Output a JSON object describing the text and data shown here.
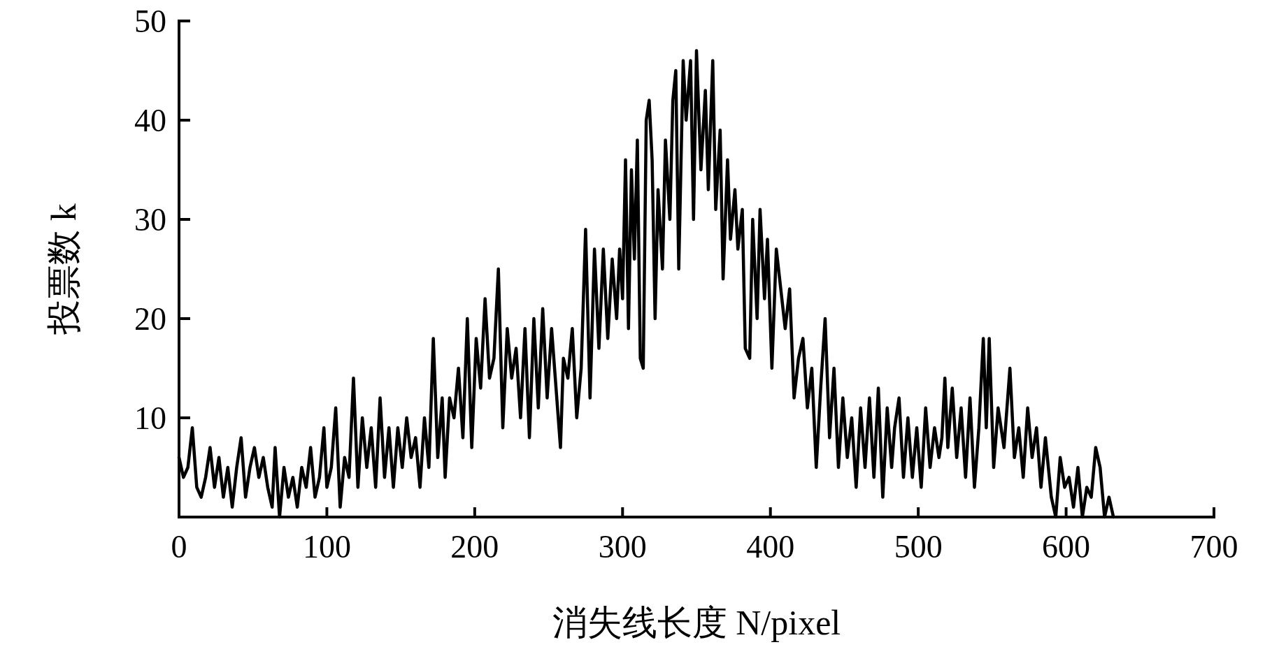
{
  "chart_data": {
    "type": "line",
    "xlabel": "消失线长度 N/pixel",
    "ylabel": "投票数 k",
    "xlim": [
      0,
      700
    ],
    "ylim": [
      0,
      50
    ],
    "xticks": [
      0,
      100,
      200,
      300,
      400,
      500,
      600,
      700
    ],
    "yticks": [
      10,
      20,
      30,
      40,
      50
    ],
    "grid": false,
    "marker": "none",
    "line_style": "solid",
    "series": [
      {
        "color": "#000000",
        "x": [
          0,
          3,
          6,
          9,
          12,
          15,
          18,
          21,
          24,
          27,
          30,
          33,
          36,
          39,
          42,
          45,
          48,
          51,
          54,
          57,
          60,
          63,
          65,
          68,
          71,
          74,
          77,
          80,
          83,
          86,
          89,
          92,
          95,
          98,
          100,
          103,
          106,
          109,
          112,
          115,
          118,
          121,
          124,
          127,
          130,
          133,
          136,
          139,
          142,
          145,
          148,
          151,
          154,
          157,
          160,
          163,
          166,
          169,
          172,
          175,
          178,
          180,
          183,
          186,
          189,
          192,
          195,
          198,
          201,
          204,
          207,
          210,
          213,
          216,
          219,
          222,
          225,
          228,
          231,
          234,
          237,
          240,
          243,
          246,
          249,
          252,
          255,
          258,
          260,
          263,
          266,
          269,
          272,
          275,
          278,
          281,
          284,
          287,
          290,
          293,
          296,
          298,
          300,
          302,
          304,
          306,
          308,
          310,
          312,
          314,
          316,
          318,
          320,
          322,
          324,
          327,
          329,
          332,
          334,
          336,
          338,
          341,
          343,
          346,
          348,
          350,
          353,
          356,
          358,
          361,
          363,
          366,
          368,
          371,
          373,
          376,
          378,
          381,
          383,
          386,
          388,
          391,
          393,
          396,
          398,
          401,
          404,
          407,
          410,
          413,
          416,
          419,
          422,
          425,
          428,
          431,
          434,
          437,
          440,
          443,
          446,
          449,
          452,
          455,
          458,
          461,
          464,
          467,
          470,
          473,
          476,
          479,
          482,
          484,
          487,
          490,
          493,
          496,
          499,
          502,
          505,
          508,
          511,
          514,
          516,
          518,
          520,
          523,
          526,
          529,
          532,
          535,
          538,
          541,
          544,
          546,
          548,
          551,
          554,
          558,
          562,
          565,
          568,
          571,
          574,
          577,
          580,
          583,
          586,
          588,
          590,
          593,
          596,
          599,
          602,
          605,
          608,
          611,
          614,
          617,
          620,
          623,
          626,
          629,
          632
        ],
        "values": [
          6,
          4,
          5,
          9,
          3,
          2,
          4,
          7,
          3,
          6,
          2,
          5,
          1,
          5,
          8,
          2,
          5,
          7,
          4,
          6,
          3,
          1,
          7,
          0,
          5,
          2,
          4,
          1,
          5,
          3,
          7,
          2,
          4,
          9,
          3,
          5,
          11,
          1,
          6,
          4,
          14,
          3,
          10,
          5,
          9,
          3,
          12,
          4,
          9,
          3,
          9,
          5,
          10,
          6,
          8,
          3,
          10,
          5,
          18,
          6,
          12,
          4,
          12,
          10,
          15,
          8,
          20,
          7,
          18,
          13,
          22,
          14,
          16,
          25,
          9,
          19,
          14,
          17,
          10,
          19,
          8,
          20,
          11,
          21,
          12,
          19,
          13,
          7,
          16,
          14,
          19,
          10,
          15,
          29,
          12,
          27,
          17,
          27,
          18,
          26,
          20,
          27,
          22,
          36,
          19,
          35,
          26,
          38,
          16,
          15,
          40,
          42,
          36,
          20,
          33,
          25,
          38,
          30,
          42,
          45,
          25,
          46,
          40,
          46,
          30,
          47,
          35,
          43,
          33,
          46,
          31,
          39,
          24,
          36,
          28,
          33,
          27,
          31,
          17,
          16,
          30,
          20,
          31,
          22,
          28,
          15,
          27,
          23,
          19,
          23,
          12,
          16,
          18,
          11,
          15,
          5,
          13,
          20,
          8,
          15,
          5,
          12,
          6,
          10,
          3,
          11,
          5,
          12,
          4,
          13,
          2,
          11,
          5,
          9,
          12,
          4,
          10,
          4,
          9,
          3,
          11,
          5,
          9,
          6,
          8,
          14,
          7,
          13,
          6,
          11,
          4,
          12,
          3,
          9,
          18,
          9,
          18,
          5,
          11,
          7,
          15,
          6,
          9,
          4,
          11,
          6,
          9,
          3,
          8,
          5,
          2,
          0,
          6,
          3,
          4,
          1,
          5,
          0,
          3,
          2,
          7,
          5,
          0,
          2,
          0
        ]
      }
    ]
  }
}
